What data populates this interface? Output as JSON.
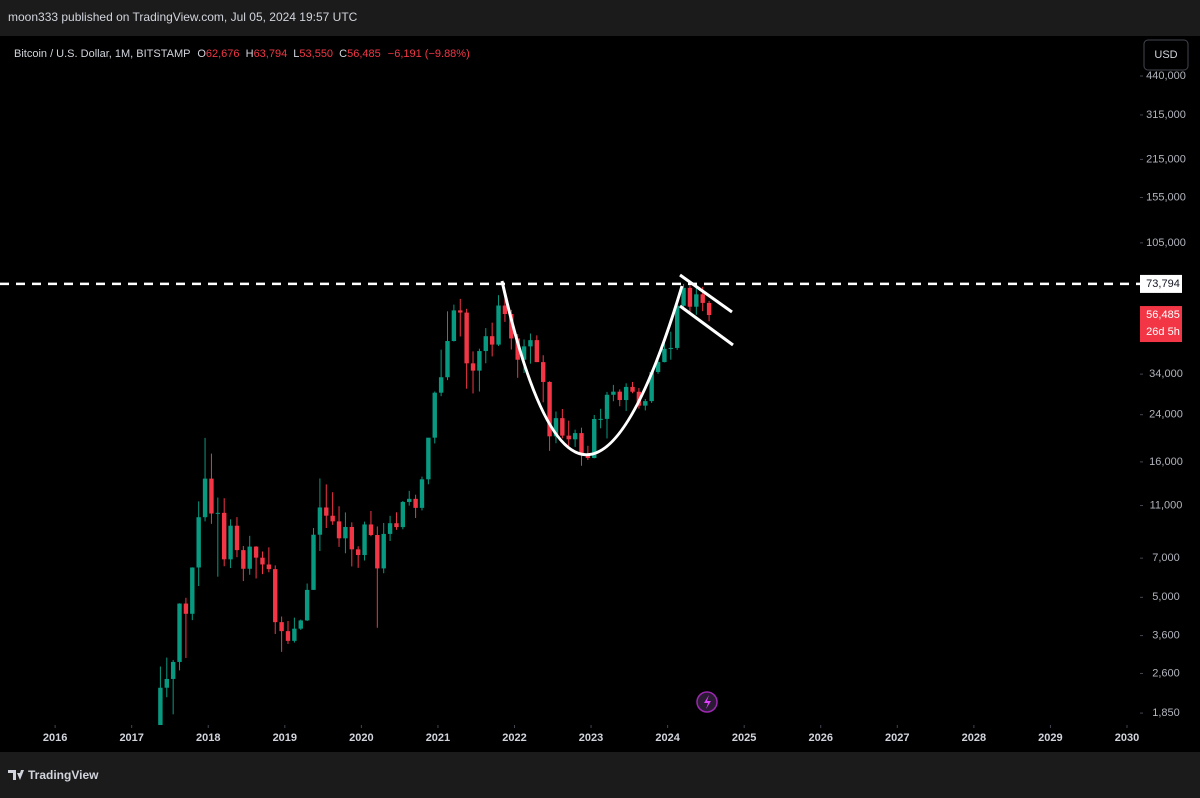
{
  "publisher": "moon333 published on TradingView.com, Jul 05, 2024 19:57 UTC",
  "brand": "TradingView",
  "currency_button": "USD",
  "chart_data": {
    "type": "candlestick",
    "title": "Bitcoin / U.S. Dollar, 1M, BITSTAMP",
    "ohlc_header": {
      "o_label": "O",
      "open": "62,676",
      "h_label": "H",
      "high": "63,794",
      "l_label": "L",
      "low": "53,550",
      "c_label": "C",
      "close": "56,485",
      "change": "−6,191 (−9.88%)"
    },
    "log_scale": true,
    "up_color": "#089981",
    "down_color": "#f23645",
    "x": [
      "2017-05",
      "2017-06",
      "2017-07",
      "2017-08",
      "2017-09",
      "2017-10",
      "2017-11",
      "2017-12",
      "2018-01",
      "2018-02",
      "2018-03",
      "2018-04",
      "2018-05",
      "2018-06",
      "2018-07",
      "2018-08",
      "2018-09",
      "2018-10",
      "2018-11",
      "2018-12",
      "2019-01",
      "2019-02",
      "2019-03",
      "2019-04",
      "2019-05",
      "2019-06",
      "2019-07",
      "2019-08",
      "2019-09",
      "2019-10",
      "2019-11",
      "2019-12",
      "2020-01",
      "2020-02",
      "2020-03",
      "2020-04",
      "2020-05",
      "2020-06",
      "2020-07",
      "2020-08",
      "2020-09",
      "2020-10",
      "2020-11",
      "2020-12",
      "2021-01",
      "2021-02",
      "2021-03",
      "2021-04",
      "2021-05",
      "2021-06",
      "2021-07",
      "2021-08",
      "2021-09",
      "2021-10",
      "2021-11",
      "2021-12",
      "2022-01",
      "2022-02",
      "2022-03",
      "2022-04",
      "2022-05",
      "2022-06",
      "2022-07",
      "2022-08",
      "2022-09",
      "2022-10",
      "2022-11",
      "2022-12",
      "2023-01",
      "2023-02",
      "2023-03",
      "2023-04",
      "2023-05",
      "2023-06",
      "2023-07",
      "2023-08",
      "2023-09",
      "2023-10",
      "2023-11",
      "2023-12",
      "2024-01",
      "2024-02",
      "2024-03",
      "2024-04",
      "2024-05",
      "2024-06",
      "2024-07"
    ],
    "open": [
      1350,
      2300,
      2480,
      2870,
      4740,
      4340,
      6460,
      9950,
      13860,
      10270,
      10330,
      6930,
      9250,
      7500,
      6390,
      7730,
      7030,
      6630,
      6370,
      4040,
      3740,
      3440,
      3820,
      4100,
      5330,
      8560,
      10820,
      10080,
      9600,
      8300,
      9150,
      7550,
      7190,
      9350,
      8540,
      6410,
      8620,
      9450,
      9140,
      11340,
      11650,
      10780,
      13780,
      19700,
      28990,
      33110,
      45190,
      58800,
      57700,
      37300,
      35040,
      41460,
      47100,
      43820,
      61300,
      57000,
      46200,
      38480,
      43160,
      45530,
      37700,
      31800,
      19930,
      23300,
      20050,
      19420,
      20490,
      17160,
      16540,
      23130,
      23150,
      28480,
      29250,
      27220,
      30470,
      29230,
      25940,
      26970,
      34640,
      37720,
      42270,
      42580,
      61170,
      71330,
      60660,
      67500,
      62676
    ],
    "high": [
      2760,
      2980,
      2920,
      4750,
      4980,
      6470,
      11400,
      19666,
      17180,
      11780,
      11710,
      9770,
      9960,
      7770,
      8480,
      7760,
      7410,
      7680,
      6580,
      4240,
      4080,
      4200,
      4130,
      5630,
      9070,
      13880,
      13190,
      12330,
      10930,
      10370,
      9520,
      7750,
      9580,
      10500,
      9190,
      9470,
      10070,
      10380,
      11440,
      12480,
      12070,
      14100,
      19480,
      29300,
      41950,
      58330,
      61780,
      64900,
      59600,
      41330,
      42320,
      50500,
      52920,
      67000,
      69000,
      59050,
      48000,
      45800,
      48200,
      47450,
      40000,
      31980,
      24670,
      25200,
      22800,
      21100,
      21470,
      18370,
      23950,
      25250,
      29190,
      31000,
      29830,
      31430,
      31800,
      30200,
      27480,
      35200,
      38400,
      44700,
      48970,
      63900,
      73794,
      72800,
      71960,
      71990,
      63794
    ],
    "low": [
      1350,
      2120,
      1830,
      2670,
      2970,
      4110,
      5510,
      9600,
      9400,
      5970,
      6530,
      6430,
      7060,
      5750,
      6070,
      5880,
      6100,
      6200,
      3650,
      3130,
      3350,
      3390,
      3780,
      4080,
      5330,
      7440,
      9070,
      9320,
      7710,
      7300,
      6520,
      6440,
      6860,
      8450,
      3850,
      6150,
      8110,
      8930,
      8970,
      10990,
      9880,
      10550,
      13200,
      18750,
      28130,
      32300,
      45000,
      47000,
      30000,
      28800,
      29280,
      37330,
      39600,
      43290,
      53250,
      42000,
      32950,
      34320,
      37200,
      37700,
      26700,
      17600,
      18780,
      19600,
      18150,
      18200,
      15480,
      16260,
      16500,
      21350,
      19570,
      26940,
      25810,
      24780,
      28860,
      25300,
      24900,
      26560,
      34100,
      37620,
      38500,
      41880,
      59000,
      56500,
      56600,
      58400,
      53550
    ],
    "close": [
      2300,
      2480,
      2870,
      4740,
      4340,
      6460,
      9950,
      13860,
      10270,
      10330,
      6930,
      9250,
      7500,
      6390,
      7730,
      7030,
      6630,
      6370,
      4040,
      3740,
      3440,
      3820,
      4100,
      5330,
      8560,
      10820,
      10080,
      9600,
      8300,
      9150,
      7550,
      7190,
      9350,
      8540,
      6410,
      8620,
      9450,
      9140,
      11340,
      11650,
      10780,
      13780,
      19700,
      28990,
      33110,
      45190,
      58800,
      57700,
      37300,
      35040,
      41460,
      47100,
      43820,
      61300,
      57000,
      46200,
      38480,
      43160,
      45530,
      37700,
      31800,
      19930,
      23300,
      20050,
      19420,
      20490,
      17160,
      16540,
      23130,
      23150,
      28480,
      29250,
      27220,
      30470,
      29230,
      25940,
      26970,
      34640,
      37720,
      42270,
      42580,
      61170,
      71330,
      60660,
      67500,
      62676,
      56485
    ],
    "xlim": [
      2015.28,
      2030.17
    ],
    "xticks": [
      2016,
      2017,
      2018,
      2019,
      2020,
      2021,
      2022,
      2023,
      2024,
      2025,
      2026,
      2027,
      2028,
      2029,
      2030
    ],
    "ylim": [
      1670,
      610000
    ],
    "yticks": [
      {
        "value": 1850,
        "label": "1,850"
      },
      {
        "value": 2600,
        "label": "2,600"
      },
      {
        "value": 3600,
        "label": "3,600"
      },
      {
        "value": 5000,
        "label": "5,000"
      },
      {
        "value": 7000,
        "label": "7,000"
      },
      {
        "value": 11000,
        "label": "11,000"
      },
      {
        "value": 16000,
        "label": "16,000"
      },
      {
        "value": 24000,
        "label": "24,000"
      },
      {
        "value": 34000,
        "label": "34,000"
      },
      {
        "value": 105000,
        "label": "105,000"
      },
      {
        "value": 155000,
        "label": "155,000"
      },
      {
        "value": 215000,
        "label": "215,000"
      },
      {
        "value": 315000,
        "label": "315,000"
      },
      {
        "value": 440000,
        "label": "440,000"
      }
    ],
    "horizontal_line": {
      "value": 73794,
      "label": "73,794"
    },
    "last_price": {
      "value": 56485,
      "label": "56,485",
      "countdown": "26d 5h"
    }
  }
}
